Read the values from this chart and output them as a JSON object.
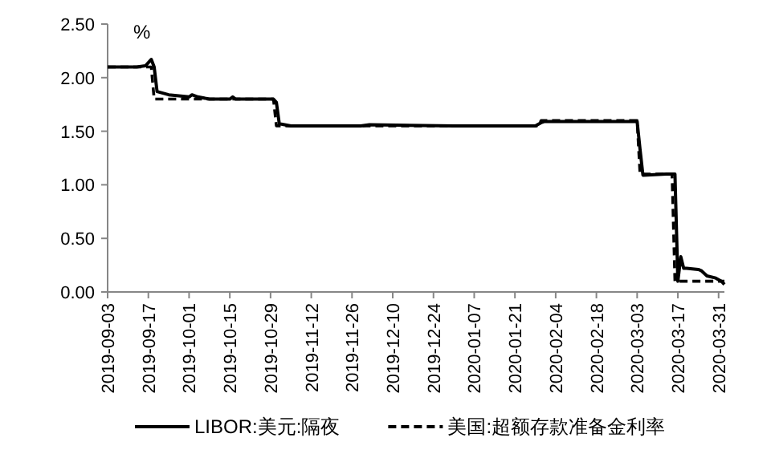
{
  "chart_data": {
    "type": "line",
    "annotations": [
      "%"
    ],
    "legend": "bottom",
    "grid": false,
    "marker": "none",
    "xlim": [
      "2019-09-03",
      "2020-04-02"
    ],
    "xticks": [
      "2019-09-03",
      "2019-09-17",
      "2019-10-01",
      "2019-10-15",
      "2019-10-29",
      "2019-11-12",
      "2019-11-26",
      "2019-12-10",
      "2019-12-24",
      "2020-01-07",
      "2020-01-21",
      "2020-02-04",
      "2020-02-18",
      "2020-03-03",
      "2020-03-17",
      "2020-03-31"
    ],
    "ylim": [
      0,
      2.5
    ],
    "yticks": [
      {
        "value": 0,
        "label": "0.00"
      },
      {
        "value": 0.5,
        "label": "0.50"
      },
      {
        "value": 1,
        "label": "1.00"
      },
      {
        "value": 1.5,
        "label": "1.50"
      },
      {
        "value": 2,
        "label": "2.00"
      },
      {
        "value": 2.5,
        "label": "2.50"
      }
    ],
    "series": [
      {
        "name": "LIBOR:美元:隔夜",
        "color": "#000000",
        "line_style": "solid",
        "x": [
          "2019-09-03",
          "2019-09-13",
          "2019-09-16",
          "2019-09-18",
          "2019-09-19",
          "2019-09-20",
          "2019-09-24",
          "2019-10-01",
          "2019-10-02",
          "2019-10-04",
          "2019-10-08",
          "2019-10-15",
          "2019-10-16",
          "2019-10-17",
          "2019-10-30",
          "2019-10-31",
          "2019-11-01",
          "2019-11-05",
          "2019-11-29",
          "2019-12-02",
          "2019-12-31",
          "2020-01-02",
          "2020-01-28",
          "2020-01-30",
          "2020-01-31",
          "2020-02-03",
          "2020-03-03",
          "2020-03-04",
          "2020-03-05",
          "2020-03-13",
          "2020-03-16",
          "2020-03-17",
          "2020-03-18",
          "2020-03-19",
          "2020-03-20",
          "2020-03-24",
          "2020-03-25",
          "2020-03-27",
          "2020-03-30",
          "2020-04-01",
          "2020-04-02"
        ],
        "values": [
          2.1,
          2.1,
          2.11,
          2.17,
          2.1,
          1.87,
          1.84,
          1.82,
          1.84,
          1.82,
          1.8,
          1.8,
          1.82,
          1.8,
          1.8,
          1.77,
          1.57,
          1.55,
          1.55,
          1.56,
          1.55,
          1.55,
          1.55,
          1.58,
          1.59,
          1.59,
          1.59,
          1.33,
          1.09,
          1.1,
          1.1,
          0.1,
          0.33,
          0.22,
          0.22,
          0.21,
          0.2,
          0.15,
          0.13,
          0.1,
          0.07
        ]
      },
      {
        "name": "美国:超额存款准备金利率",
        "color": "#000000",
        "line_style": "dashed",
        "x": [
          "2019-09-03",
          "2019-09-18",
          "2019-09-19",
          "2019-10-30",
          "2019-10-31",
          "2020-01-29",
          "2020-01-30",
          "2020-03-03",
          "2020-03-04",
          "2020-03-15",
          "2020-03-16",
          "2020-04-02"
        ],
        "values": [
          2.1,
          2.1,
          1.8,
          1.8,
          1.55,
          1.55,
          1.6,
          1.6,
          1.1,
          1.1,
          0.1,
          0.1
        ]
      }
    ]
  }
}
